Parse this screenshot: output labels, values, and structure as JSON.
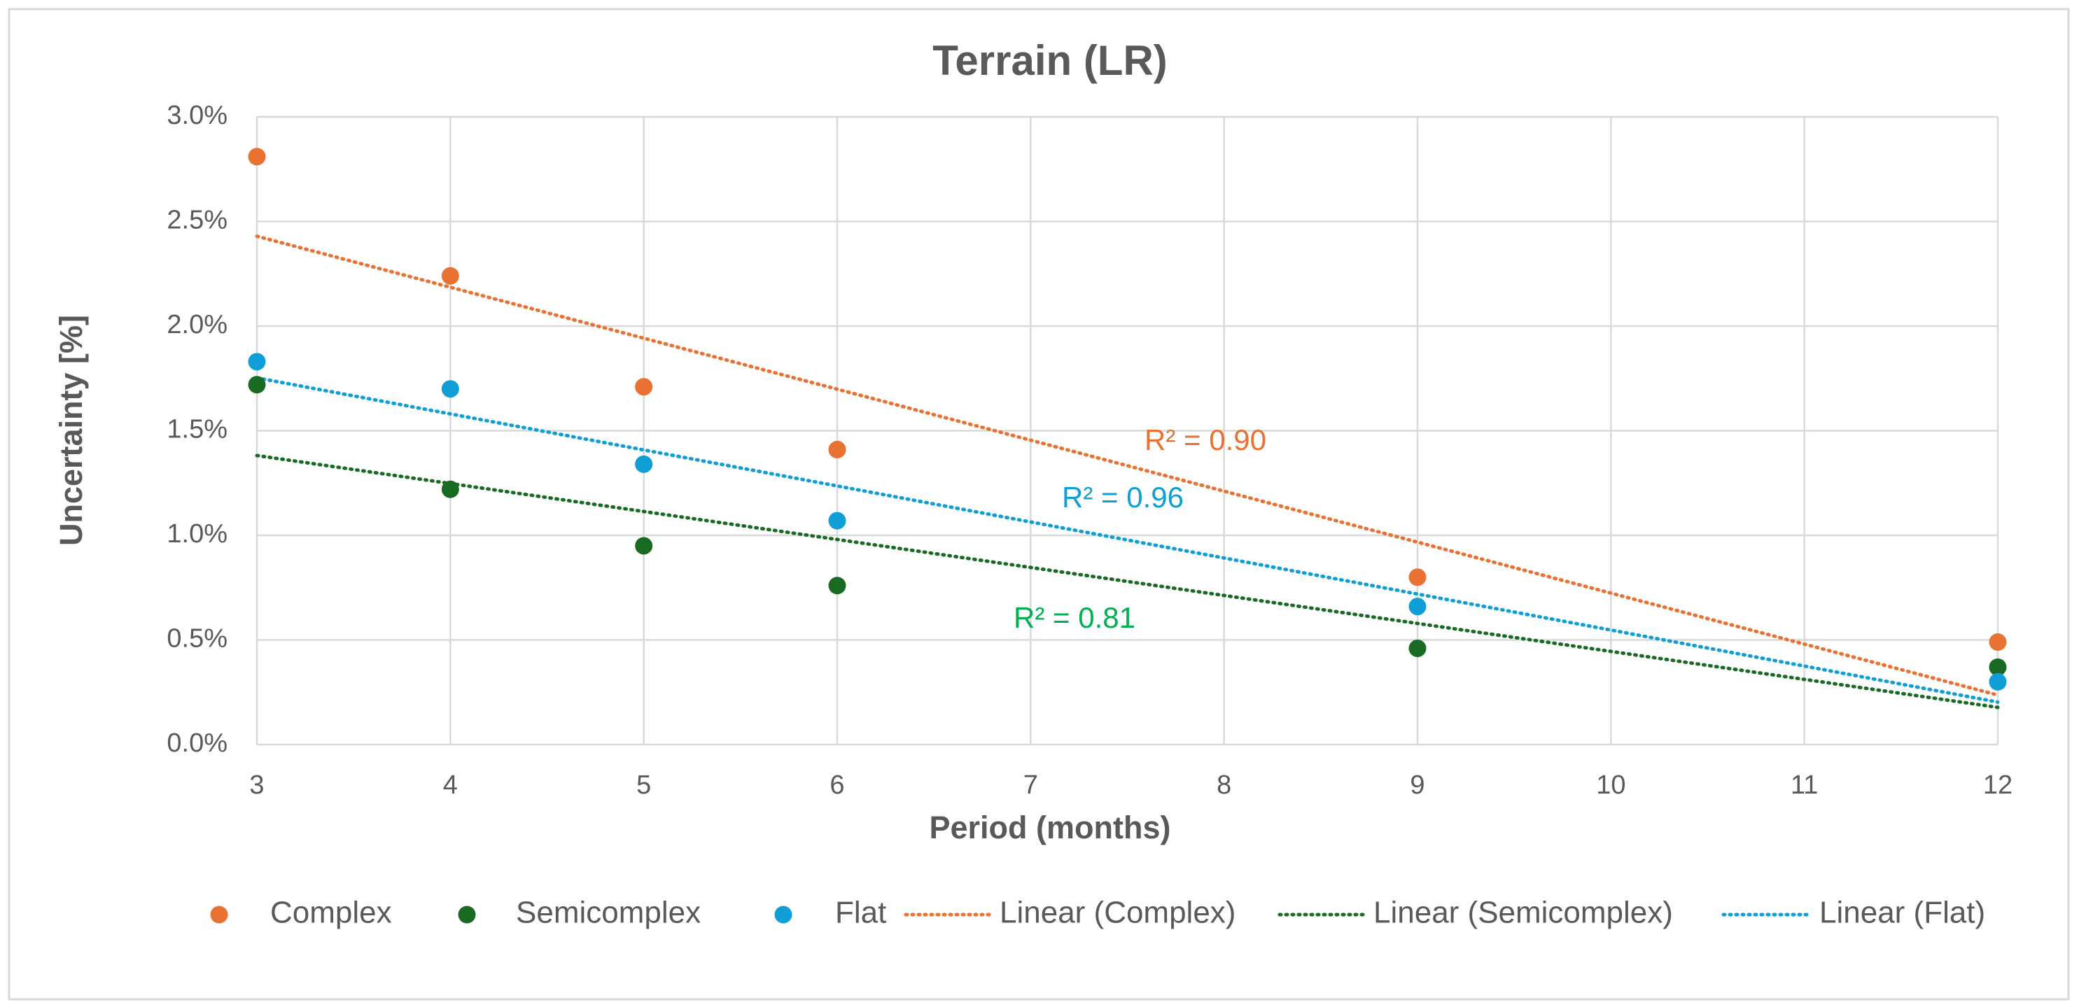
{
  "chart_data": {
    "type": "scatter",
    "title": "Terrain (LR)",
    "x_label": "Period (months)",
    "y_label": "Uncertainty [%]",
    "xlim": [
      3,
      12
    ],
    "xticks": [
      3,
      4,
      5,
      6,
      7,
      8,
      9,
      10,
      11,
      12
    ],
    "ylim": [
      0,
      3
    ],
    "yticks": [
      {
        "value": 0,
        "label": "0.0%"
      },
      {
        "value": 0.5,
        "label": "0.5%"
      },
      {
        "value": 1,
        "label": "1.0%"
      },
      {
        "value": 1.5,
        "label": "1.5%"
      },
      {
        "value": 2,
        "label": "2.0%"
      },
      {
        "value": 2.5,
        "label": "2.5%"
      },
      {
        "value": 3,
        "label": "3.0%"
      }
    ],
    "grid": true,
    "legend": "bottom",
    "series": [
      {
        "name": "Complex",
        "color": "#E97132",
        "x": [
          3,
          4,
          5,
          6,
          9,
          12
        ],
        "values": [
          2.81,
          2.24,
          1.71,
          1.41,
          0.8,
          0.49
        ]
      },
      {
        "name": "Semicomplex",
        "color": "#196B24",
        "x": [
          3,
          4,
          5,
          6,
          9,
          12
        ],
        "values": [
          1.72,
          1.22,
          0.95,
          0.76,
          0.46,
          0.37
        ]
      },
      {
        "name": "Flat",
        "color": "#0F9ED5",
        "x": [
          3,
          4,
          5,
          6,
          9,
          12
        ],
        "values": [
          1.83,
          1.7,
          1.34,
          1.07,
          0.66,
          0.3
        ]
      }
    ],
    "trendlines": [
      {
        "name": "Linear (Complex)",
        "series": 0,
        "color": "#E97132",
        "label": "R² = 0.90",
        "label_color": "#E97132"
      },
      {
        "name": "Linear (Semicomplex)",
        "series": 1,
        "color": "#196B24",
        "label": "R² = 0.81",
        "label_color": "#00B050"
      },
      {
        "name": "Linear (Flat)",
        "series": 2,
        "color": "#0F9ED5",
        "label": "R² = 0.96",
        "label_color": "#0F9ED5"
      }
    ]
  }
}
